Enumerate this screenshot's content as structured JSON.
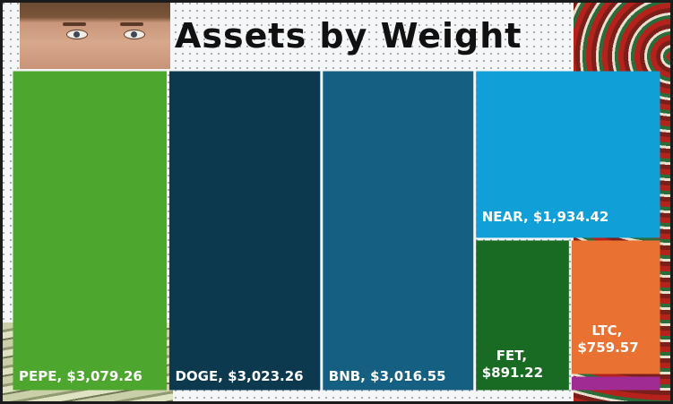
{
  "chart_data": {
    "type": "treemap",
    "title": "Assets by Weight",
    "items": [
      {
        "label": "PEPE, $3,079.26",
        "name": "PEPE",
        "value": 3079.26,
        "color": "#4da72e"
      },
      {
        "label": "DOGE, $3,023.26",
        "name": "DOGE",
        "value": 3023.26,
        "color": "#0d394f"
      },
      {
        "label": "BNB, $3,016.55",
        "name": "BNB",
        "value": 3016.55,
        "color": "#155f82"
      },
      {
        "label": "NEAR, $1,934.42",
        "name": "NEAR",
        "value": 1934.42,
        "color": "#119fd7"
      },
      {
        "label": "FET, $891.22",
        "name": "FET",
        "value": 891.22,
        "color": "#196b24",
        "lines": [
          "FET,",
          "$891.22"
        ]
      },
      {
        "label": "LTC, $759.57",
        "name": "LTC",
        "value": 759.57,
        "color": "#e97132",
        "lines": [
          "LTC,",
          "$759.57"
        ]
      },
      {
        "label": "",
        "name": "",
        "value": 90,
        "color": "#a02b93"
      }
    ]
  }
}
